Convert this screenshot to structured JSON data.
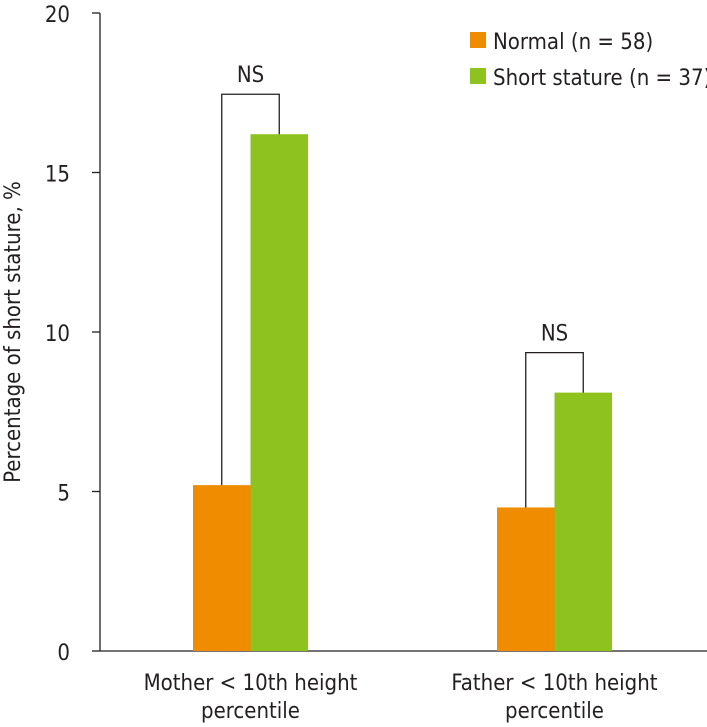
{
  "chart_data": {
    "type": "bar",
    "title": "",
    "xlabel": "",
    "ylabel": "Percentage of short stature, %",
    "ylim": [
      0,
      20
    ],
    "yticks": [
      0,
      5,
      10,
      15,
      20
    ],
    "categories": [
      [
        "Mother < 10th height",
        "percentile"
      ],
      [
        "Father < 10th height",
        "percentile"
      ]
    ],
    "series": [
      {
        "name": "Normal (n = 58)",
        "color": "#f08c00",
        "values": [
          5.2,
          4.5
        ]
      },
      {
        "name": "Short stature (n = 37)",
        "color": "#8dc21f",
        "values": [
          16.2,
          8.1
        ]
      }
    ],
    "annotations": [
      "NS",
      "NS"
    ],
    "legend_position": "top-right",
    "grid": false
  }
}
